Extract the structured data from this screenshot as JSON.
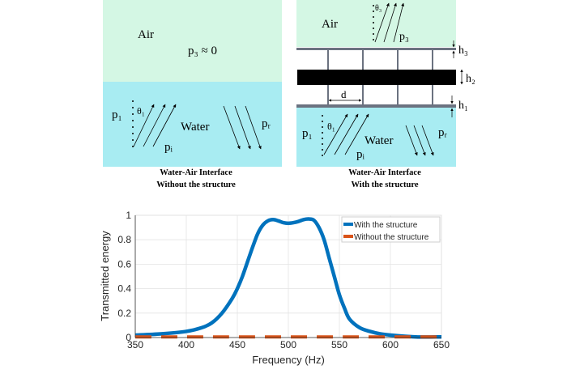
{
  "diagram": {
    "colors": {
      "air": "#d4f7e4",
      "water": "#a8ecf2",
      "plate": "#6b7280",
      "bar": "#000000"
    },
    "left": {
      "air_label": "Air",
      "p3_label": "p₃ ≈ 0",
      "water_label": "Water",
      "p1_label": "p₁",
      "theta_label": "θ₁",
      "pi_label": "pᵢ",
      "pr_label": "pᵣ",
      "caption_line1": "Water-Air Interface",
      "caption_line2": "Without the structure"
    },
    "right": {
      "air_label": "Air",
      "theta3_label": "θ₃",
      "p3_label": "p₃",
      "h3_label": "h₃",
      "h2_label": "h₂",
      "h1_label": "h₁",
      "d_label": "d",
      "water_label": "Water",
      "p1_label": "p₁",
      "theta_label": "θ₁",
      "pi_label": "pᵢ",
      "pr_label": "pᵣ",
      "caption_line1": "Water-Air Interface",
      "caption_line2": "With the structure"
    }
  },
  "chart_data": {
    "type": "line",
    "xlabel": "Frequency (Hz)",
    "ylabel": "Transmitted energy",
    "xlim": [
      350,
      650
    ],
    "ylim": [
      0,
      1
    ],
    "xticks": [
      350,
      400,
      450,
      500,
      550,
      600,
      650
    ],
    "yticks": [
      0,
      0.2,
      0.4,
      0.6,
      0.8,
      1
    ],
    "ytick_labels": [
      "0",
      "0.2",
      "0.4",
      "0.6",
      "0.8",
      "1"
    ],
    "grid": true,
    "legend_position": "top-right",
    "series": [
      {
        "name": "With the structure",
        "color": "#0072bd",
        "style": "solid",
        "x": [
          350,
          375,
          400,
          415,
          425,
          435,
          445,
          450,
          455,
          460,
          465,
          470,
          475,
          480,
          485,
          490,
          495,
          500,
          505,
          510,
          515,
          520,
          525,
          530,
          535,
          540,
          545,
          550,
          555,
          560,
          570,
          580,
          590,
          600,
          625,
          650
        ],
        "y": [
          0.02,
          0.03,
          0.05,
          0.08,
          0.12,
          0.2,
          0.32,
          0.4,
          0.5,
          0.62,
          0.74,
          0.85,
          0.92,
          0.955,
          0.965,
          0.955,
          0.94,
          0.935,
          0.94,
          0.95,
          0.965,
          0.97,
          0.96,
          0.9,
          0.8,
          0.65,
          0.5,
          0.35,
          0.24,
          0.15,
          0.08,
          0.05,
          0.03,
          0.02,
          0.005,
          0.005
        ]
      },
      {
        "name": "Without the structure",
        "color": "#d95319",
        "style": "dashed",
        "x": [
          350,
          650
        ],
        "y": [
          0.005,
          0.005
        ]
      }
    ]
  }
}
